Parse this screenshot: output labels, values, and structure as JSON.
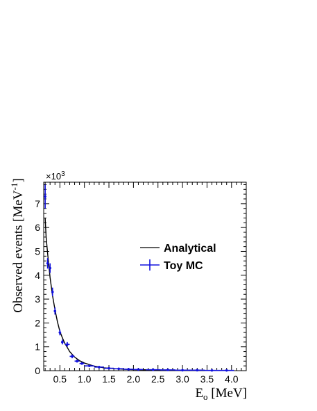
{
  "chart_data": {
    "type": "line",
    "x_title": "E",
    "x_title_sub": "o",
    "x_title_unit": " [MeV]",
    "y_title": "Observed events [MeV",
    "y_title_sup": "-1",
    "y_title_end": "]",
    "y_multiplier": "×10",
    "y_multiplier_exp": "3",
    "xlim": [
      0.17,
      4.3
    ],
    "ylim": [
      0,
      7.9
    ],
    "x_ticks": [
      "0.5",
      "1.0",
      "1.5",
      "2.0",
      "2.5",
      "3.0",
      "3.5",
      "4.0"
    ],
    "x_tick_values": [
      0.5,
      1.0,
      1.5,
      2.0,
      2.5,
      3.0,
      3.5,
      4.0
    ],
    "y_ticks": [
      "0",
      "1",
      "2",
      "3",
      "4",
      "5",
      "6",
      "7"
    ],
    "y_tick_values": [
      0,
      1,
      2,
      3,
      4,
      5,
      6,
      7
    ],
    "legend_position": "center-right",
    "series": [
      {
        "name": "Analytical",
        "kind": "line",
        "color": "#000000",
        "x": [
          0.2,
          0.22,
          0.25,
          0.28,
          0.3,
          0.35,
          0.4,
          0.45,
          0.5,
          0.55,
          0.6,
          0.7,
          0.8,
          0.9,
          1.0,
          1.2,
          1.4,
          1.6,
          1.8,
          2.0,
          2.5,
          3.0,
          3.5,
          4.0
        ],
        "y": [
          6.4,
          5.6,
          4.9,
          4.3,
          3.9,
          3.15,
          2.55,
          2.05,
          1.65,
          1.38,
          1.15,
          0.8,
          0.57,
          0.42,
          0.32,
          0.19,
          0.12,
          0.085,
          0.06,
          0.045,
          0.025,
          0.015,
          0.01,
          0.007
        ]
      },
      {
        "name": "Toy MC",
        "kind": "points",
        "color": "#1010dd",
        "x": [
          0.2,
          0.25,
          0.3,
          0.35,
          0.4,
          0.5,
          0.55,
          0.65,
          0.75,
          0.85,
          0.95,
          1.1,
          1.3,
          1.5,
          1.7,
          1.9,
          2.1,
          2.4,
          2.7,
          3.0,
          3.3,
          3.6,
          3.9
        ],
        "y": [
          7.3,
          4.5,
          4.3,
          3.3,
          2.5,
          1.6,
          1.2,
          1.1,
          0.6,
          0.4,
          0.3,
          0.2,
          0.15,
          0.1,
          0.08,
          0.06,
          0.05,
          0.04,
          0.03,
          0.02,
          0.02,
          0.01,
          0.01
        ],
        "yerr": [
          0.5,
          0.22,
          0.2,
          0.18,
          0.15,
          0.12,
          0.1,
          0.1,
          0.08,
          0.06,
          0.05,
          0.04,
          0.03,
          0.03,
          0.02,
          0.02,
          0.02,
          0.02,
          0.015,
          0.01,
          0.01,
          0.01,
          0.01
        ],
        "xerr": [
          0.02,
          0.025,
          0.025,
          0.025,
          0.025,
          0.025,
          0.025,
          0.05,
          0.05,
          0.05,
          0.05,
          0.1,
          0.1,
          0.1,
          0.1,
          0.1,
          0.1,
          0.15,
          0.15,
          0.15,
          0.15,
          0.15,
          0.15
        ]
      }
    ]
  }
}
